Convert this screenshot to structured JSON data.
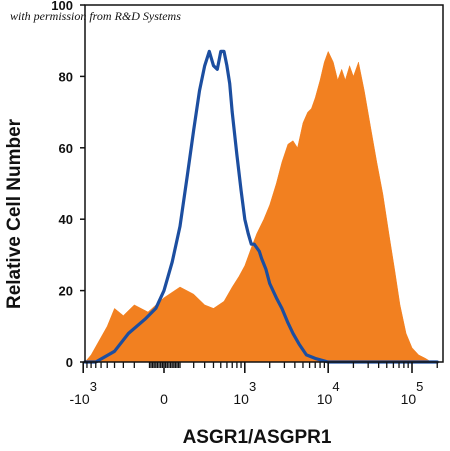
{
  "watermark": "with permission from R&D Systems",
  "chart_data": {
    "type": "area",
    "title": "",
    "xlabel": "ASGR1/ASGPR1",
    "ylabel": "Relative Cell Number",
    "x_scale": "biexponential",
    "xlim": [
      -2000,
      200000
    ],
    "ylim": [
      0,
      100
    ],
    "grid": false,
    "legend": "none",
    "yticks": [
      {
        "value": 0,
        "label": "0"
      },
      {
        "value": 20,
        "label": "20"
      },
      {
        "value": 40,
        "label": "40"
      },
      {
        "value": 60,
        "label": "60"
      },
      {
        "value": 80,
        "label": "80"
      },
      {
        "value": 100,
        "label": "100"
      }
    ],
    "xticks": [
      {
        "value": -1000,
        "base": "-10",
        "exp": "3"
      },
      {
        "value": 0,
        "base": "0",
        "exp": ""
      },
      {
        "value": 1000,
        "base": "10",
        "exp": "3"
      },
      {
        "value": 10000,
        "base": "10",
        "exp": "4"
      },
      {
        "value": 100000,
        "base": "10",
        "exp": "5"
      }
    ],
    "series": [
      {
        "kind": "filled",
        "color": "#f28020",
        "points": [
          [
            -1200,
            0
          ],
          [
            -800,
            2
          ],
          [
            -500,
            10
          ],
          [
            -400,
            15
          ],
          [
            -300,
            13
          ],
          [
            -200,
            16
          ],
          [
            -100,
            14
          ],
          [
            0,
            18
          ],
          [
            100,
            21
          ],
          [
            200,
            19
          ],
          [
            300,
            16
          ],
          [
            400,
            15
          ],
          [
            550,
            17
          ],
          [
            700,
            21
          ],
          [
            850,
            24
          ],
          [
            1000,
            27
          ],
          [
            1200,
            32
          ],
          [
            1400,
            36
          ],
          [
            1700,
            40
          ],
          [
            2000,
            44
          ],
          [
            2400,
            50
          ],
          [
            2800,
            56
          ],
          [
            3300,
            61
          ],
          [
            3800,
            62
          ],
          [
            4300,
            60
          ],
          [
            5000,
            67
          ],
          [
            5700,
            70
          ],
          [
            6300,
            71
          ],
          [
            7000,
            74
          ],
          [
            8000,
            79
          ],
          [
            9000,
            84
          ],
          [
            10000,
            87
          ],
          [
            11500,
            84
          ],
          [
            13000,
            79
          ],
          [
            14500,
            82
          ],
          [
            16000,
            79
          ],
          [
            18000,
            83
          ],
          [
            20000,
            80
          ],
          [
            23000,
            84
          ],
          [
            27000,
            76
          ],
          [
            32000,
            66
          ],
          [
            38000,
            56
          ],
          [
            45000,
            47
          ],
          [
            53000,
            36
          ],
          [
            62000,
            26
          ],
          [
            72000,
            16
          ],
          [
            85000,
            8
          ],
          [
            100000,
            4
          ],
          [
            120000,
            2
          ],
          [
            145000,
            1
          ],
          [
            170000,
            0
          ]
        ]
      },
      {
        "kind": "outline",
        "color": "#1c4ea0",
        "points": [
          [
            -2000,
            0
          ],
          [
            -700,
            0
          ],
          [
            -400,
            3
          ],
          [
            -250,
            8
          ],
          [
            -120,
            12
          ],
          [
            -50,
            15
          ],
          [
            0,
            20
          ],
          [
            50,
            28
          ],
          [
            100,
            38
          ],
          [
            150,
            52
          ],
          [
            200,
            65
          ],
          [
            250,
            76
          ],
          [
            300,
            83
          ],
          [
            350,
            87
          ],
          [
            400,
            83
          ],
          [
            450,
            82
          ],
          [
            500,
            87
          ],
          [
            550,
            87
          ],
          [
            600,
            83
          ],
          [
            650,
            78
          ],
          [
            700,
            70
          ],
          [
            800,
            58
          ],
          [
            900,
            48
          ],
          [
            1000,
            40
          ],
          [
            1100,
            36
          ],
          [
            1200,
            33
          ],
          [
            1300,
            33
          ],
          [
            1400,
            32
          ],
          [
            1500,
            31
          ],
          [
            1600,
            29
          ],
          [
            1800,
            26
          ],
          [
            2000,
            22
          ],
          [
            2400,
            18
          ],
          [
            2800,
            15
          ],
          [
            3300,
            11
          ],
          [
            3800,
            8
          ],
          [
            4500,
            5
          ],
          [
            5500,
            2
          ],
          [
            7000,
            1
          ],
          [
            10000,
            0
          ],
          [
            200000,
            0
          ]
        ]
      }
    ]
  }
}
